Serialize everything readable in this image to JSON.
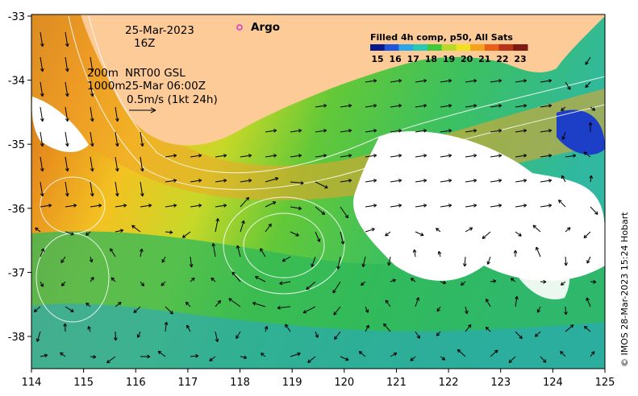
{
  "datetime": {
    "date": "25-Mar-2023",
    "hour": "16Z"
  },
  "legend": {
    "title": "Filled 4h comp, p50, All Sats",
    "ticks": [
      "15",
      "16",
      "17",
      "18",
      "19",
      "20",
      "21",
      "22",
      "23"
    ],
    "colors": [
      "#0a1a8c",
      "#1f55d8",
      "#2ba6e6",
      "#27c9b4",
      "#3fc93a",
      "#b8d82a",
      "#f0e020",
      "#f5a21a",
      "#e8601a",
      "#b8321a",
      "#7a1a10"
    ]
  },
  "argo": {
    "label": "Argo",
    "color": "#e030c8"
  },
  "info": {
    "line1a": "200m",
    "line1b": "NRT00 GSL",
    "line2a": "1000m",
    "line2b": "25-Mar 06:00Z",
    "scale": "0.5m/s (1kt 24h)"
  },
  "axes": {
    "x_ticks": [
      "114",
      "115",
      "116",
      "117",
      "118",
      "119",
      "120",
      "121",
      "122",
      "123",
      "124",
      "125"
    ],
    "y_ticks": [
      "-33",
      "-34",
      "-35",
      "-36",
      "-37",
      "-38"
    ],
    "xlim": [
      114,
      125
    ],
    "ylim": [
      -38.5,
      -33
    ]
  },
  "land_color": "#fccb98",
  "credit": "© IMOS 28-Mar-2023 15:24 Hobart"
}
